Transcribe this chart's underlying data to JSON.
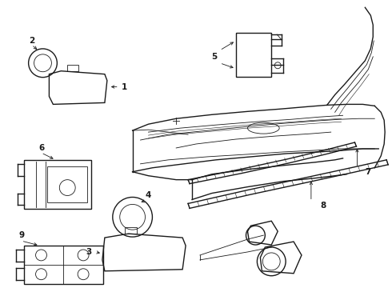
{
  "background": "#ffffff",
  "line_color": "#1a1a1a",
  "fig_width": 4.9,
  "fig_height": 3.6,
  "dpi": 100
}
